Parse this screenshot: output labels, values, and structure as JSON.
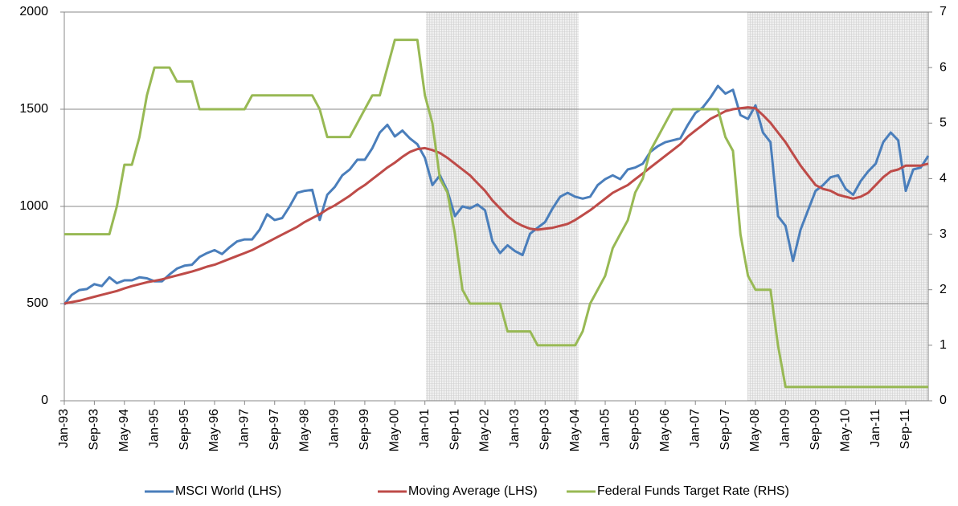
{
  "chart_data": {
    "type": "line",
    "categories": [
      "Jan-93",
      null,
      null,
      null,
      "Sep-93",
      null,
      null,
      null,
      "May-94",
      null,
      null,
      null,
      "Jan-95",
      null,
      null,
      null,
      "Sep-95",
      null,
      null,
      null,
      "May-96",
      null,
      null,
      null,
      "Jan-97",
      null,
      null,
      null,
      "Sep-97",
      null,
      null,
      null,
      "May-98",
      null,
      null,
      null,
      "Jan-99",
      null,
      null,
      null,
      "Sep-99",
      null,
      null,
      null,
      "May-00",
      null,
      null,
      null,
      "Jan-01",
      null,
      null,
      null,
      "Sep-01",
      null,
      null,
      null,
      "May-02",
      null,
      null,
      null,
      "Jan-03",
      null,
      null,
      null,
      "Sep-03",
      null,
      null,
      null,
      "May-04",
      null,
      null,
      null,
      "Jan-05",
      null,
      null,
      null,
      "Sep-05",
      null,
      null,
      null,
      "May-06",
      null,
      null,
      null,
      "Jan-07",
      null,
      null,
      null,
      "Sep-07",
      null,
      null,
      null,
      "May-08",
      null,
      null,
      null,
      "Jan-09",
      null,
      null,
      null,
      "Sep-09",
      null,
      null,
      null,
      "May-10",
      null,
      null,
      null,
      "Jan-11",
      null,
      null,
      null,
      "Sep-11",
      null,
      null,
      null
    ],
    "series": [
      {
        "name": "MSCI World (LHS)",
        "color": "#4a7ebb",
        "axis": "y",
        "values": [
          495,
          545,
          570,
          575,
          600,
          590,
          635,
          605,
          620,
          620,
          635,
          630,
          615,
          615,
          650,
          680,
          695,
          700,
          740,
          760,
          775,
          755,
          790,
          820,
          830,
          830,
          880,
          960,
          930,
          940,
          1000,
          1070,
          1080,
          1085,
          930,
          1060,
          1100,
          1160,
          1190,
          1240,
          1240,
          1300,
          1380,
          1420,
          1360,
          1390,
          1350,
          1320,
          1250,
          1110,
          1160,
          1080,
          950,
          1000,
          990,
          1010,
          980,
          820,
          760,
          800,
          770,
          750,
          860,
          890,
          920,
          990,
          1050,
          1070,
          1050,
          1040,
          1050,
          1110,
          1140,
          1160,
          1140,
          1190,
          1200,
          1220,
          1280,
          1310,
          1330,
          1340,
          1350,
          1420,
          1480,
          1510,
          1560,
          1620,
          1580,
          1600,
          1470,
          1450,
          1520,
          1380,
          1330,
          950,
          900,
          720,
          880,
          980,
          1080,
          1110,
          1150,
          1160,
          1090,
          1060,
          1130,
          1180,
          1220,
          1330,
          1380,
          1340,
          1080,
          1190,
          1200,
          1260
        ]
      },
      {
        "name": "Moving Average (LHS)",
        "color": "#be4b48",
        "axis": "y",
        "values": [
          500,
          508,
          515,
          525,
          535,
          545,
          555,
          565,
          578,
          590,
          600,
          610,
          617,
          625,
          635,
          645,
          655,
          665,
          677,
          690,
          700,
          715,
          730,
          745,
          760,
          775,
          795,
          815,
          835,
          855,
          875,
          895,
          920,
          940,
          960,
          985,
          1005,
          1030,
          1055,
          1085,
          1110,
          1140,
          1170,
          1200,
          1225,
          1255,
          1280,
          1295,
          1300,
          1290,
          1275,
          1250,
          1220,
          1190,
          1160,
          1120,
          1080,
          1030,
          990,
          950,
          920,
          900,
          885,
          880,
          885,
          890,
          900,
          910,
          930,
          955,
          980,
          1010,
          1040,
          1070,
          1090,
          1110,
          1140,
          1170,
          1200,
          1230,
          1260,
          1290,
          1320,
          1360,
          1390,
          1420,
          1450,
          1470,
          1490,
          1500,
          1505,
          1510,
          1505,
          1470,
          1430,
          1380,
          1330,
          1270,
          1210,
          1160,
          1110,
          1090,
          1080,
          1060,
          1050,
          1040,
          1050,
          1070,
          1110,
          1150,
          1180,
          1190,
          1210,
          1210,
          1210,
          1220
        ]
      },
      {
        "name": "Federal Funds Target Rate (RHS)",
        "color": "#98b954",
        "axis": "y2",
        "values": [
          3,
          3,
          3,
          3,
          3,
          3,
          3,
          3.5,
          4.25,
          4.25,
          4.75,
          5.5,
          6,
          6,
          6,
          5.75,
          5.75,
          5.75,
          5.25,
          5.25,
          5.25,
          5.25,
          5.25,
          5.25,
          5.25,
          5.5,
          5.5,
          5.5,
          5.5,
          5.5,
          5.5,
          5.5,
          5.5,
          5.5,
          5.25,
          4.75,
          4.75,
          4.75,
          4.75,
          5,
          5.25,
          5.5,
          5.5,
          6,
          6.5,
          6.5,
          6.5,
          6.5,
          5.5,
          5,
          4,
          3.75,
          3,
          2,
          1.75,
          1.75,
          1.75,
          1.75,
          1.75,
          1.25,
          1.25,
          1.25,
          1.25,
          1,
          1,
          1,
          1,
          1,
          1,
          1.25,
          1.75,
          2,
          2.25,
          2.75,
          3,
          3.25,
          3.75,
          4,
          4.5,
          4.75,
          5,
          5.25,
          5.25,
          5.25,
          5.25,
          5.25,
          5.25,
          5.25,
          4.75,
          4.5,
          3,
          2.25,
          2,
          2,
          2,
          1,
          0.25,
          0.25,
          0.25,
          0.25,
          0.25,
          0.25,
          0.25,
          0.25,
          0.25,
          0.25,
          0.25,
          0.25,
          0.25,
          0.25,
          0.25,
          0.25,
          0.25,
          0.25,
          0.25,
          0.25
        ]
      }
    ],
    "ylim": [
      0,
      2000
    ],
    "yticks": [
      0,
      500,
      1000,
      1500,
      2000
    ],
    "y2lim": [
      0,
      7
    ],
    "y2ticks": [
      0,
      1,
      2,
      3,
      4,
      5,
      6,
      7
    ],
    "grid": true,
    "legend": "bottom"
  }
}
